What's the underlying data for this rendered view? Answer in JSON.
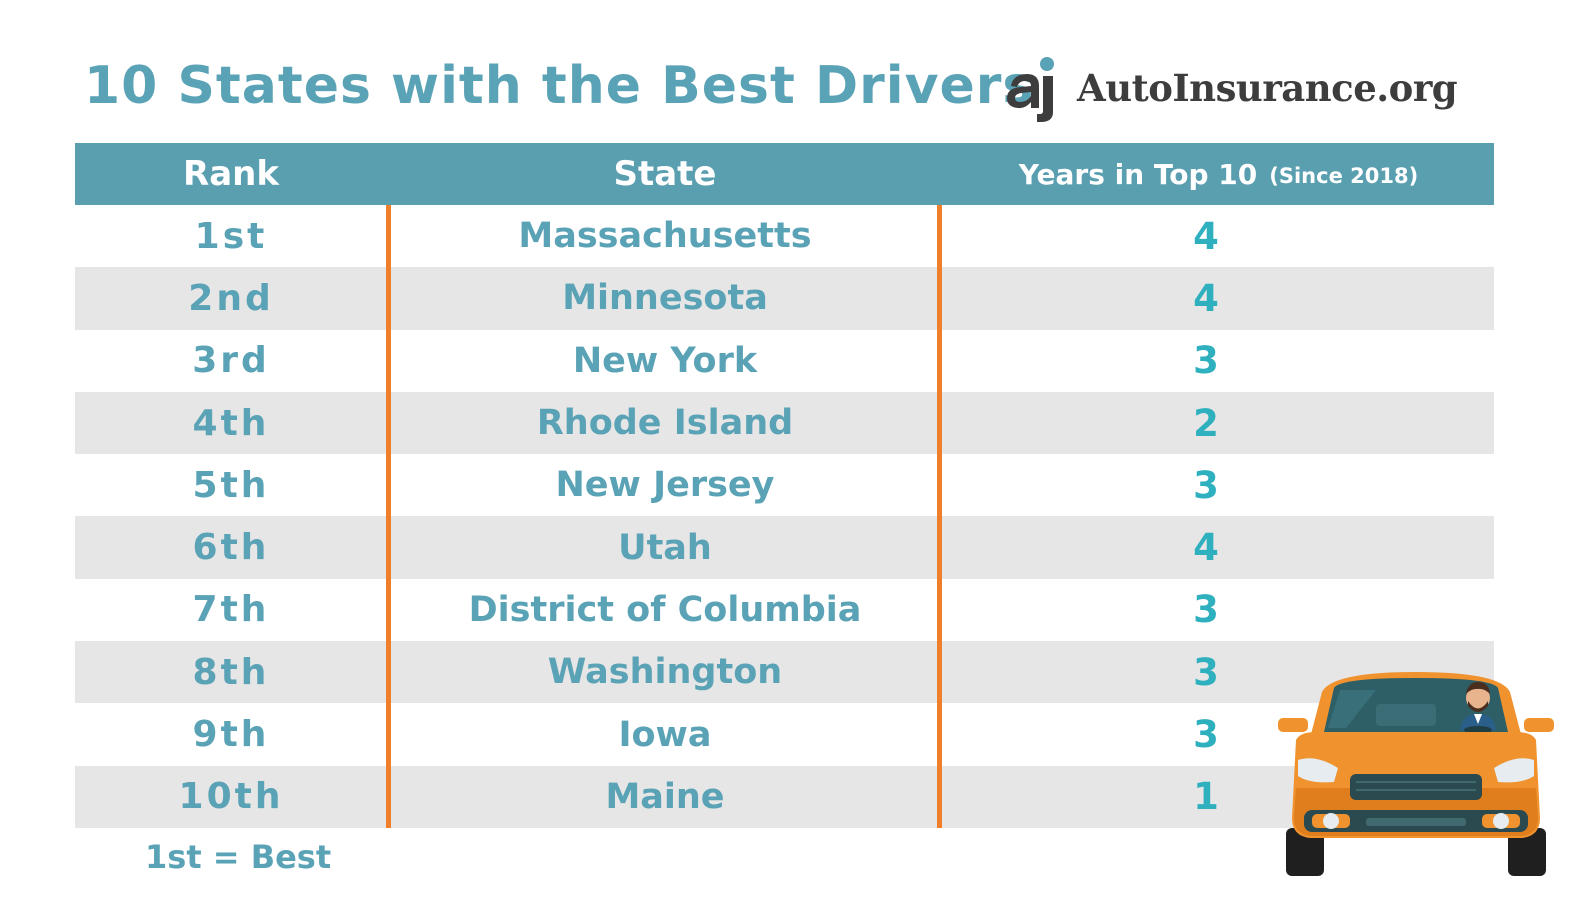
{
  "title": "10 States with the Best Drivers",
  "logo": {
    "text": "AutoInsurance.org",
    "mark_text": "ai"
  },
  "table": {
    "headers": {
      "rank": "Rank",
      "state": "State",
      "years": "Years in Top 10",
      "years_sub": "(Since 2018)"
    },
    "rows": [
      {
        "rank": "1st",
        "state": "Massachusetts",
        "years": "4"
      },
      {
        "rank": "2nd",
        "state": "Minnesota",
        "years": "4"
      },
      {
        "rank": "3rd",
        "state": "New York",
        "years": "3"
      },
      {
        "rank": "4th",
        "state": "Rhode Island",
        "years": "2"
      },
      {
        "rank": "5th",
        "state": "New Jersey",
        "years": "3"
      },
      {
        "rank": "6th",
        "state": "Utah",
        "years": "4"
      },
      {
        "rank": "7th",
        "state": "District of Columbia",
        "years": "3"
      },
      {
        "rank": "8th",
        "state": "Washington",
        "years": "3"
      },
      {
        "rank": "9th",
        "state": "Iowa",
        "years": "3"
      },
      {
        "rank": "10th",
        "state": "Maine",
        "years": "1"
      }
    ]
  },
  "footnote": "1st = Best",
  "colors": {
    "accent": "#5aa2b5",
    "header_bg": "#5a9fb0",
    "divider": "#ef7f2b",
    "alt_row": "#e6e6e6",
    "value": "#2fb0bf",
    "car_body": "#f0922e"
  },
  "icons": {
    "logo": "autoinsurance-logo-icon",
    "car": "orange-car-with-driver-icon"
  }
}
